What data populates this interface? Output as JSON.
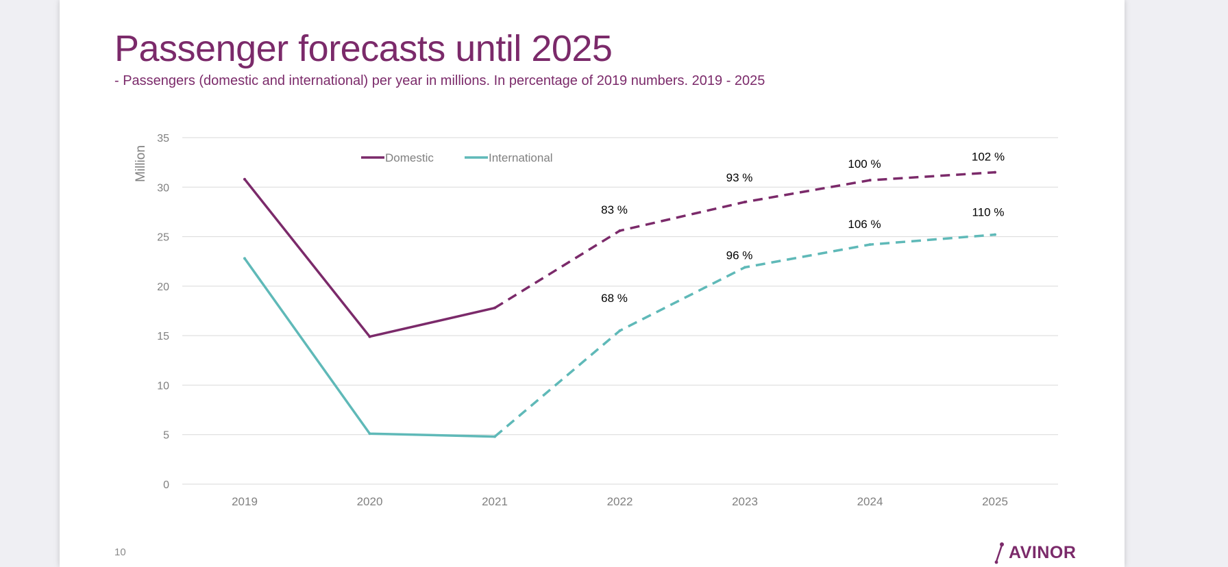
{
  "slide": {
    "title": "Passenger forecasts until 2025",
    "subtitle": "- Passengers (domestic and international) per year in millions. In percentage of 2019 numbers. 2019 - 2025",
    "page_number": "10",
    "logo_text": "AVINOR"
  },
  "colors": {
    "domestic": "#7b2a6a",
    "international": "#5fb9b8",
    "title": "#7b2a6a",
    "axis_text": "#808080",
    "grid": "#d9d9d9"
  },
  "chart_data": {
    "type": "line",
    "title": "",
    "xlabel": "",
    "ylabel": "Million",
    "ylim": [
      0,
      35
    ],
    "yticks": [
      0,
      5,
      10,
      15,
      20,
      25,
      30,
      35
    ],
    "categories": [
      "2019",
      "2020",
      "2021",
      "2022",
      "2023",
      "2024",
      "2025"
    ],
    "forecast_from_index": 2,
    "legend_position": "top-left",
    "series": [
      {
        "name": "Domestic",
        "color": "#7b2a6a",
        "values": [
          30.8,
          14.9,
          17.8,
          25.6,
          28.5,
          30.7,
          31.5
        ],
        "labels": [
          null,
          null,
          null,
          "83 %",
          "93 %",
          "100 %",
          "102 %"
        ]
      },
      {
        "name": "International",
        "color": "#5fb9b8",
        "values": [
          22.8,
          5.1,
          4.8,
          15.5,
          21.9,
          24.2,
          25.2
        ],
        "labels": [
          null,
          null,
          null,
          "68 %",
          "96 %",
          "106 %",
          "110 %"
        ]
      }
    ]
  }
}
